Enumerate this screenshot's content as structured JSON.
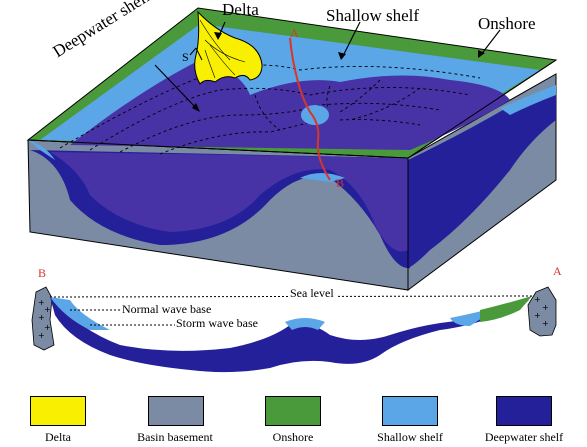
{
  "labels": {
    "delta": "Delta",
    "shallow_shelf": "Shallow shelf",
    "onshore": "Onshore",
    "deepwater_shelf": "Deepwater shelf",
    "point_a_top": "A",
    "point_b_top": "B",
    "point_a_section": "A",
    "point_b_section": "B",
    "sea_level": "Sea level",
    "normal_wave_base": "Normal wave base",
    "storm_wave_base": "Storm wave base",
    "sv": "S"
  },
  "legend": [
    {
      "key": "delta",
      "label": "Delta",
      "color": "#f8f000"
    },
    {
      "key": "basin",
      "label": "Basin basement",
      "color": "#7b8ba3"
    },
    {
      "key": "onshore",
      "label": "Onshore",
      "color": "#4a9a3c"
    },
    {
      "key": "shallow",
      "label": "Shallow  shelf",
      "color": "#5aa6e6"
    },
    {
      "key": "deep",
      "label": "Deepwater shelf",
      "color": "#24209a"
    }
  ],
  "colors": {
    "delta": "#f8f000",
    "basin": "#7b8ba3",
    "onshore": "#4a9a3c",
    "shallow": "#5aa6e6",
    "deep_top": "#4733a6",
    "deep": "#24209a",
    "section_line": "#d9352a"
  }
}
